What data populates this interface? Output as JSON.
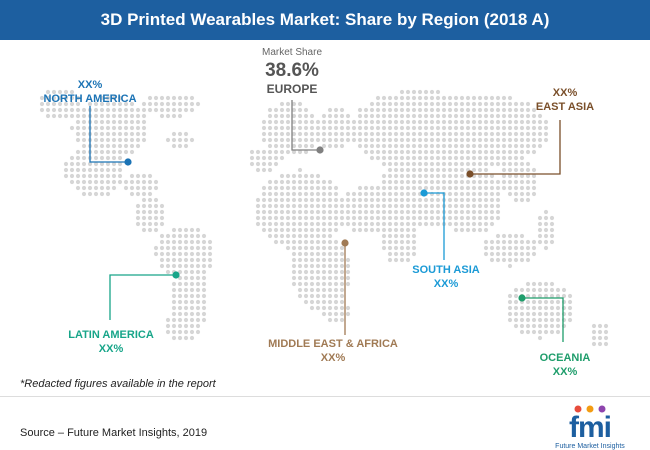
{
  "title": "3D Printed Wearables Market: Share by Region (2018 A)",
  "colors": {
    "title_bar": "#1d5fa0",
    "map_dots": "#d6d6d6",
    "north_america": "#1b73b5",
    "europe": "#808080",
    "east_asia": "#7a4f2a",
    "south_asia": "#1b9ad6",
    "latin_america": "#17a589",
    "middle_east_africa": "#a07a54",
    "oceania": "#1e9d6b"
  },
  "chart_data": {
    "type": "map",
    "title": "3D Printed Wearables Market: Share by Region (2018 A)",
    "highlight": {
      "label": "Market Share",
      "region": "EUROPE",
      "value": "38.6%"
    },
    "regions": [
      {
        "name": "NORTH AMERICA",
        "value": "XX%"
      },
      {
        "name": "EUROPE",
        "value": "38.6%"
      },
      {
        "name": "EAST ASIA",
        "value": "XX%"
      },
      {
        "name": "SOUTH ASIA",
        "value": "XX%"
      },
      {
        "name": "LATIN AMERICA",
        "value": "XX%"
      },
      {
        "name": "MIDDLE EAST & AFRICA",
        "value": "XX%"
      },
      {
        "name": "OCEANIA",
        "value": "XX%"
      }
    ]
  },
  "note": "*Redacted figures available in the report",
  "source": "Source – Future Market Insights, 2019",
  "logo": {
    "letters": "fmi",
    "subtitle": "Future Market Insights"
  }
}
